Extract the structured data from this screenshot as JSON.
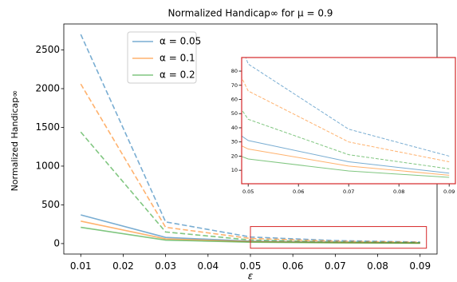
{
  "chart_data": {
    "type": "line",
    "title": "Normalized Handicap∞ for μ = 0.9",
    "xlabel": "ε",
    "ylabel": "Normalized  Handicap∞",
    "x": [
      0.01,
      0.03,
      0.05,
      0.07,
      0.09
    ],
    "xlim": [
      0.006,
      0.094
    ],
    "ylim": [
      -135,
      2835
    ],
    "xticks": [
      0.01,
      0.02,
      0.03,
      0.04,
      0.05,
      0.06,
      0.07,
      0.08,
      0.09
    ],
    "yticks": [
      0,
      500,
      1000,
      1500,
      2000,
      2500
    ],
    "series": [
      {
        "name": "α = 0.05",
        "color": "#1f77b4",
        "values": [
          370,
          80,
          31,
          16,
          8
        ]
      },
      {
        "name": "α = 0.1",
        "color": "#ff7f0e",
        "values": [
          290,
          60,
          25,
          13,
          6.5
        ]
      },
      {
        "name": "α = 0.2",
        "color": "#2ca02c",
        "values": [
          210,
          45,
          18,
          9.5,
          5
        ]
      }
    ],
    "dashed_series": [
      {
        "color": "#1f77b4",
        "values": [
          2700,
          280,
          85,
          39,
          20
        ]
      },
      {
        "color": "#ff7f0e",
        "values": [
          2060,
          210,
          66,
          30,
          16
        ]
      },
      {
        "color": "#2ca02c",
        "values": [
          1440,
          150,
          46,
          21,
          11
        ]
      }
    ],
    "legend": "upper center-left",
    "zoom_box": {
      "x": [
        0.05,
        0.0915
      ],
      "y": [
        -60,
        220
      ],
      "color": "#d62728"
    },
    "inset": {
      "xlim": [
        0.0487,
        0.0914
      ],
      "ylim": [
        0.5,
        89.6
      ],
      "xticks": [
        0.05,
        0.06,
        0.07,
        0.08,
        0.09
      ],
      "yticks": [
        10,
        20,
        30,
        40,
        50,
        60,
        70,
        80
      ],
      "frame_color": "#d62728"
    }
  }
}
